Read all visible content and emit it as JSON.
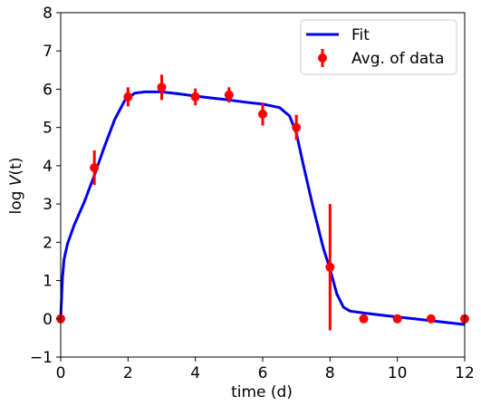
{
  "chart_data": {
    "type": "line",
    "xlabel": "time (d)",
    "ylabel_prefix": "log ",
    "ylabel_var": "V",
    "ylabel_args": "(t)",
    "xlim": [
      0,
      12
    ],
    "ylim": [
      -1,
      8
    ],
    "x_ticks": [
      0,
      2,
      4,
      6,
      8,
      10,
      12
    ],
    "y_ticks": [
      -1,
      0,
      1,
      2,
      3,
      4,
      5,
      6,
      7,
      8
    ],
    "x_tick_labels": [
      "0",
      "2",
      "4",
      "6",
      "8",
      "10",
      "12"
    ],
    "y_tick_labels": [
      "−1",
      "0",
      "1",
      "2",
      "3",
      "4",
      "5",
      "6",
      "7",
      "8"
    ],
    "grid": false,
    "legend_position": "top-right",
    "series": [
      {
        "name": "Fit",
        "kind": "line",
        "color": "#0000ee",
        "x": [
          0,
          0.05,
          0.1,
          0.2,
          0.4,
          0.7,
          1.0,
          1.3,
          1.6,
          1.9,
          2.2,
          2.5,
          3.0,
          3.5,
          4.0,
          4.5,
          5.0,
          5.5,
          6.0,
          6.5,
          6.8,
          7.0,
          7.2,
          7.5,
          7.8,
          8.0,
          8.2,
          8.4,
          8.6,
          9.0,
          9.5,
          10.0,
          10.5,
          11.0,
          11.5,
          12.0
        ],
        "y": [
          0,
          1.05,
          1.55,
          1.95,
          2.45,
          3.05,
          3.75,
          4.5,
          5.2,
          5.7,
          5.9,
          5.93,
          5.93,
          5.88,
          5.82,
          5.77,
          5.72,
          5.66,
          5.61,
          5.52,
          5.3,
          4.85,
          4.05,
          2.9,
          1.85,
          1.3,
          0.65,
          0.3,
          0.2,
          0.15,
          0.1,
          0.05,
          0.0,
          -0.05,
          -0.1,
          -0.15
        ]
      },
      {
        "name": "Avg. of data",
        "kind": "scatter_errorbar",
        "color": "#ff0000",
        "x": [
          0,
          1,
          2,
          3,
          4,
          5,
          6,
          7,
          8,
          9,
          10,
          11,
          12
        ],
        "y": [
          0,
          3.95,
          5.8,
          6.05,
          5.8,
          5.85,
          5.35,
          5.0,
          1.35,
          0,
          0,
          0,
          0
        ],
        "err": [
          0,
          0.45,
          0.25,
          0.33,
          0.22,
          0.2,
          0.3,
          0.33,
          1.65,
          0,
          0,
          0,
          0
        ]
      }
    ]
  }
}
